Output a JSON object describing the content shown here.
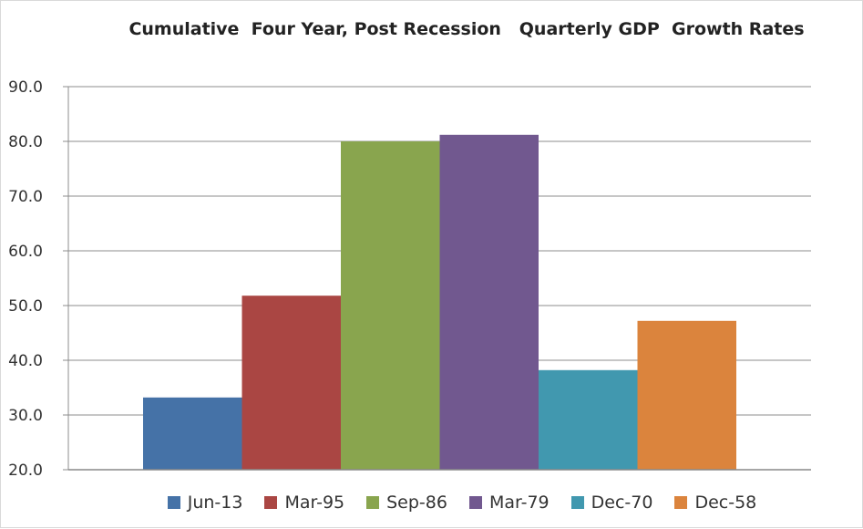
{
  "chart_data": {
    "type": "bar",
    "title": "Cumulative  Four Year, Post Recession   Quarterly GDP  Growth Rates",
    "xlabel": "",
    "ylabel": "",
    "ylim": [
      20,
      90
    ],
    "yticks": [
      "20.0",
      "30.0",
      "40.0",
      "50.0",
      "60.0",
      "70.0",
      "80.0",
      "90.0"
    ],
    "grid": true,
    "legend_position": "bottom",
    "series": [
      {
        "name": "Jun-13",
        "value": 33.2,
        "color": "#4572a7"
      },
      {
        "name": "Mar-95",
        "value": 51.8,
        "color": "#aa4643"
      },
      {
        "name": "Sep-86",
        "value": 80.0,
        "color": "#89a54e"
      },
      {
        "name": "Mar-79",
        "value": 81.2,
        "color": "#71588f"
      },
      {
        "name": "Dec-70",
        "value": 38.2,
        "color": "#4198af"
      },
      {
        "name": "Dec-58",
        "value": 47.2,
        "color": "#db843d"
      }
    ]
  }
}
